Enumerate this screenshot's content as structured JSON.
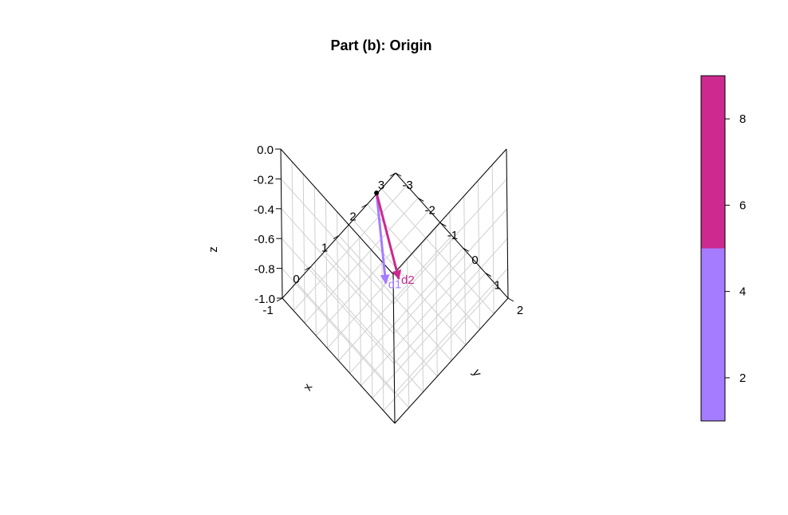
{
  "chart_data": {
    "type": "3d-vector",
    "title": "Part (b): Origin",
    "axes": {
      "x": {
        "label": "x",
        "range": [
          -1,
          3
        ],
        "ticks": [
          "-1",
          "0",
          "1",
          "2",
          "3"
        ]
      },
      "y": {
        "label": "y",
        "range": [
          -3,
          2
        ],
        "ticks": [
          "-3",
          "-2",
          "-1",
          "0",
          "1",
          "2"
        ]
      },
      "z": {
        "label": "z",
        "range": [
          -1.0,
          0.0
        ],
        "ticks": [
          "-1.0",
          "-0.8",
          "-0.6",
          "-0.4",
          "-0.2",
          "0.0"
        ]
      }
    },
    "origin_point": {
      "x": 0,
      "y": 0,
      "z": 0
    },
    "vectors": [
      {
        "name": "d1",
        "label": "d1",
        "from": [
          0,
          0,
          0
        ],
        "to": [
          0.6,
          -0.4,
          -0.8
        ],
        "value": 2.3,
        "color": "#A57CFF"
      },
      {
        "name": "d2",
        "label": "d2",
        "from": [
          0,
          0,
          0
        ],
        "to": [
          0.9,
          -0.2,
          -0.8
        ],
        "value": 7.9,
        "color": "#C92A8E"
      }
    ],
    "colorbar": {
      "range": [
        1,
        9
      ],
      "ticks": [
        "2",
        "4",
        "6",
        "8"
      ],
      "segments": [
        {
          "from": 1,
          "to": 5,
          "color": "#A57CFF"
        },
        {
          "from": 5,
          "to": 9,
          "color": "#CC2A8F"
        }
      ]
    }
  }
}
